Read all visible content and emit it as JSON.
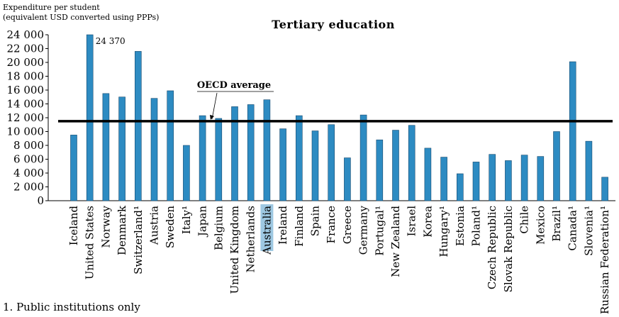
{
  "chart_data": {
    "type": "bar",
    "title": "Tertiary education",
    "ylabel_lines": [
      "Expenditure per student",
      "(equivalent USD converted using PPPs)"
    ],
    "ylim": [
      0,
      24000
    ],
    "yticks": [
      "0",
      "2 000",
      "4 000",
      "6 000",
      "8 000",
      "10 000",
      "12 000",
      "14 000",
      "16 000",
      "18 000",
      "20 000",
      "22 000",
      "24 000"
    ],
    "categories": [
      "Iceland",
      "United States",
      "Norway",
      "Denmark",
      "Switzerland¹",
      "Austria",
      "Sweden",
      "Italy¹",
      "Japan",
      "Belgium",
      "United Kingdom",
      "Netherlands",
      "Australia",
      "Ireland",
      "Finland",
      "Spain",
      "France",
      "Greece",
      "Germany",
      "Portugal¹",
      "New Zealand",
      "Israel",
      "Korea",
      "Hungary¹",
      "Estonia",
      "Poland¹",
      "Czech Republic",
      "Slovak Republic",
      "Chile",
      "Mexico",
      "Brazil¹",
      "Canada¹",
      "Slovenia¹",
      "Russian Federation¹"
    ],
    "values": [
      9500,
      24370,
      15500,
      15000,
      21600,
      14800,
      15900,
      8000,
      12300,
      11900,
      13600,
      13900,
      14600,
      10400,
      12300,
      10100,
      11000,
      6200,
      12400,
      8800,
      10200,
      10900,
      7600,
      6300,
      3900,
      5600,
      6700,
      5800,
      6600,
      6400,
      10000,
      20100,
      8600,
      3400
    ],
    "highlight": "Australia",
    "data_labels": [
      {
        "category": "United States",
        "text": "24 370"
      }
    ],
    "reference_line": {
      "label": "OECD average",
      "value": 11500
    },
    "grid": false,
    "colors": {
      "bar": "#2d8bc2",
      "bar_edge": "#174a6e",
      "highlight_bg": "#9ec8e2",
      "reference": "#000000"
    }
  },
  "footnote": "1. Public institutions only"
}
